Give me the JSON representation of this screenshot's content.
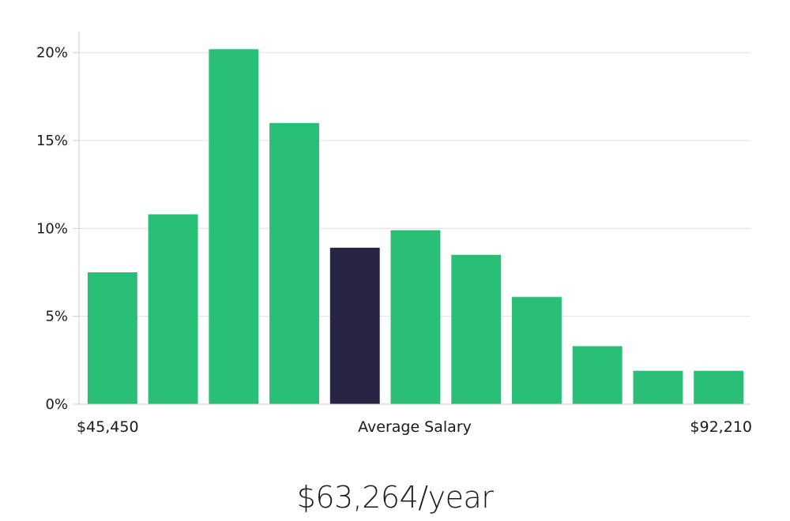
{
  "chart_data": {
    "type": "bar",
    "title": "",
    "xlabel": "Average Salary",
    "ylabel": "",
    "x_range_labels": {
      "min": "$45,450",
      "max": "$92,210"
    },
    "y_tick_labels": [
      "0%",
      "5%",
      "10%",
      "15%",
      "20%"
    ],
    "y_ticks": [
      0,
      5,
      10,
      15,
      20
    ],
    "ylim": [
      0,
      21.2
    ],
    "grid": true,
    "values": [
      7.5,
      10.8,
      20.2,
      16.0,
      8.9,
      9.9,
      8.5,
      6.1,
      3.3,
      1.9,
      1.9
    ],
    "highlight_index": 4,
    "colors": {
      "bar": "#2abf76",
      "highlight": "#282444",
      "grid": "#e4e4e4",
      "axis": "#cccccc"
    }
  },
  "summary": {
    "salary_text": "$63,264/year"
  }
}
